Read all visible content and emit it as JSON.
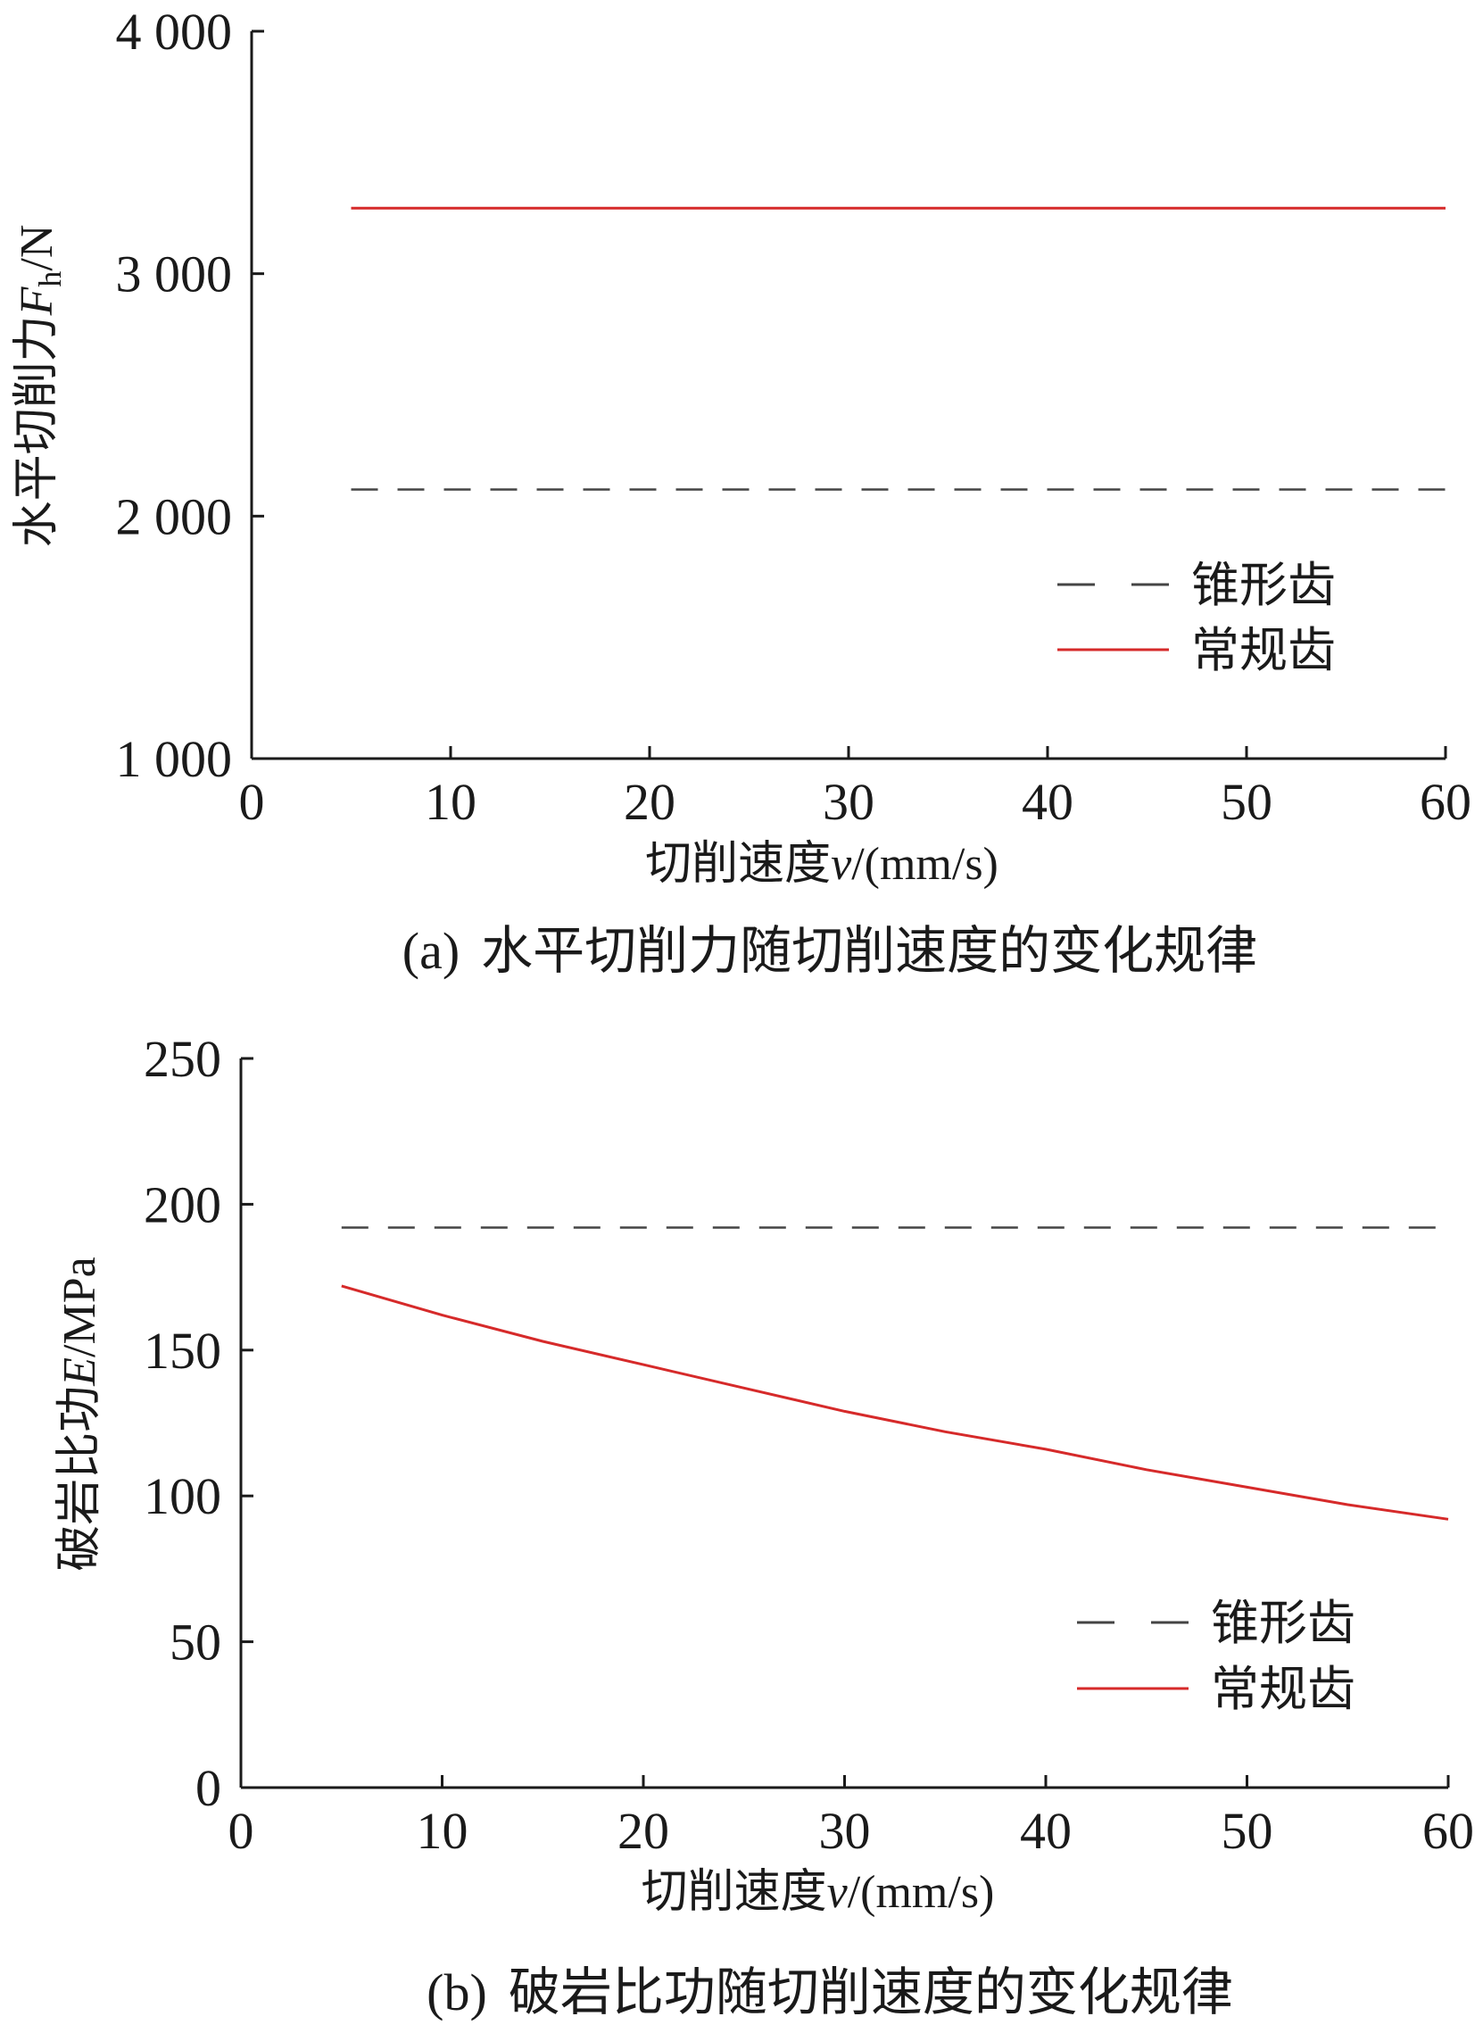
{
  "chart_data": [
    {
      "type": "line",
      "panel_tag": "(a)",
      "caption": "水平切削力随切削速度的变化规律",
      "xlabel": {
        "text": "切削速度",
        "var": "v",
        "unit": "/(mm/s)"
      },
      "ylabel": {
        "text": "水平切削力",
        "var": "F",
        "sub": "h",
        "unit": "/N"
      },
      "xlim": [
        0,
        60
      ],
      "ylim": [
        1000,
        4000
      ],
      "x_ticks": [
        0,
        10,
        20,
        30,
        40,
        50,
        60
      ],
      "x_tick_labels": [
        "0",
        "10",
        "20",
        "30",
        "40",
        "50",
        "60"
      ],
      "y_ticks": [
        1000,
        2000,
        3000,
        4000
      ],
      "y_tick_labels": [
        "1 000",
        "2 000",
        "3 000",
        "4 000"
      ],
      "legend_position": "lower-right",
      "series": [
        {
          "name": "锥形齿",
          "style": "dashed",
          "color": "#444444",
          "x": [
            5,
            60
          ],
          "y": [
            2110,
            2110
          ]
        },
        {
          "name": "常规齿",
          "style": "solid",
          "color": "#d62a2a",
          "x": [
            5,
            60
          ],
          "y": [
            3270,
            3270
          ]
        }
      ]
    },
    {
      "type": "line",
      "panel_tag": "(b)",
      "caption": "破岩比功随切削速度的变化规律",
      "xlabel": {
        "text": "切削速度",
        "var": "v",
        "unit": "/(mm/s)"
      },
      "ylabel": {
        "text": "破岩比功",
        "var": "E",
        "sub": "",
        "unit": "/MPa"
      },
      "xlim": [
        0,
        60
      ],
      "ylim": [
        0,
        250
      ],
      "x_ticks": [
        0,
        10,
        20,
        30,
        40,
        50,
        60
      ],
      "x_tick_labels": [
        "0",
        "10",
        "20",
        "30",
        "40",
        "50",
        "60"
      ],
      "y_ticks": [
        0,
        50,
        100,
        150,
        200,
        250
      ],
      "y_tick_labels": [
        "0",
        "50",
        "100",
        "150",
        "200",
        "250"
      ],
      "legend_position": "lower-right",
      "series": [
        {
          "name": "锥形齿",
          "style": "dashed",
          "color": "#444444",
          "x": [
            5,
            60
          ],
          "y": [
            192,
            192
          ]
        },
        {
          "name": "常规齿",
          "style": "solid",
          "color": "#d62a2a",
          "x": [
            5,
            10,
            15,
            20,
            25,
            30,
            35,
            40,
            45,
            50,
            55,
            60
          ],
          "y": [
            172,
            162,
            153,
            145,
            137,
            129,
            122,
            116,
            109,
            103,
            97,
            92
          ]
        }
      ]
    }
  ]
}
